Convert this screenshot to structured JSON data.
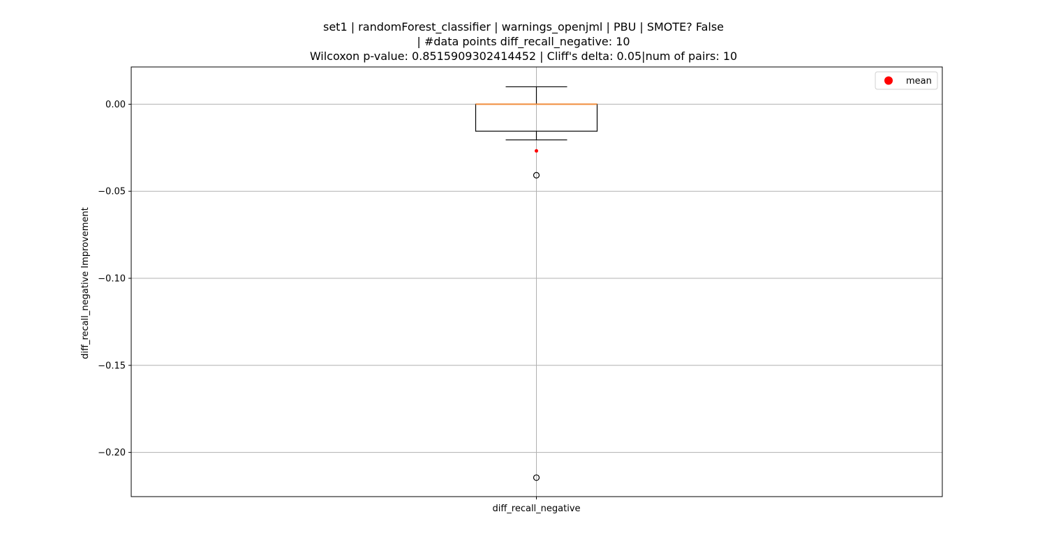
{
  "chart_data": {
    "type": "box",
    "title_lines": [
      "set1 | randomForest_classifier | warnings_openjml | PBU | SMOTE? False",
      "| #data points diff_recall_negative: 10",
      "Wilcoxon p-value: 0.8515909302414452 | Cliff's delta: 0.05|num of pairs: 10"
    ],
    "ylabel": "diff_recall_negative Improvement",
    "xlabel": "",
    "categories": [
      "diff_recall_negative"
    ],
    "ylim": [
      -0.2254,
      0.0214
    ],
    "yticks": [
      0.0,
      -0.05,
      -0.1,
      -0.15,
      -0.2
    ],
    "ytick_labels": [
      "0.00",
      "−0.05",
      "−0.10",
      "−0.15",
      "−0.20"
    ],
    "grid": true,
    "box": {
      "whisker_high": 0.01,
      "q3": 0.0,
      "median": 0.0,
      "q1": -0.0155,
      "whisker_low": -0.0205,
      "mean": -0.0268,
      "outliers": [
        -0.0408,
        -0.2145
      ]
    },
    "legend": {
      "position": "top-right",
      "entries": [
        {
          "label": "mean",
          "color": "#ff0000"
        }
      ]
    },
    "colors": {
      "median": "#f08c3c",
      "mean": "#ff0000",
      "grid": "#b0b0b0",
      "box": "#000000"
    }
  }
}
